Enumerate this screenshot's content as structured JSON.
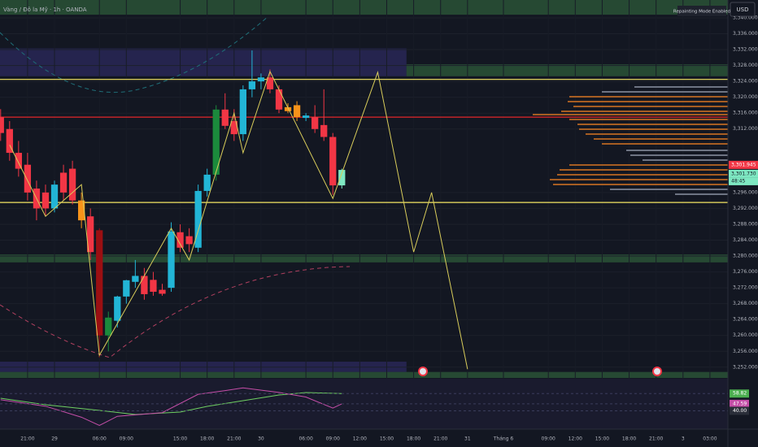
{
  "chart_data": {
    "type": "candlestick",
    "title": "Vàng / Đô la Mỹ · 1h · OANDA",
    "badge": "Repainting Mode Enabled",
    "currency": "USD",
    "countdown": "48:45",
    "background": "#131722",
    "grid": true,
    "xlim": [
      -6.07,
      75
    ],
    "ylim": [
      3249.3,
      3344.5
    ],
    "yticks": [
      {
        "value": 3252,
        "label": "3,252.000"
      },
      {
        "value": 3256,
        "label": "3,256.000"
      },
      {
        "value": 3260,
        "label": "3,260.000"
      },
      {
        "value": 3264,
        "label": "3,264.000"
      },
      {
        "value": 3268,
        "label": "3,268.000"
      },
      {
        "value": 3272,
        "label": "3,272.000"
      },
      {
        "value": 3276,
        "label": "3,276.000"
      },
      {
        "value": 3280,
        "label": "3,280.000"
      },
      {
        "value": 3284,
        "label": "3,284.000"
      },
      {
        "value": 3288,
        "label": "3,288.000"
      },
      {
        "value": 3292,
        "label": "3,292.000"
      },
      {
        "value": 3296,
        "label": "3,296.000"
      },
      {
        "value": 3312,
        "label": "3,312.000"
      },
      {
        "value": 3316,
        "label": "3,316.000"
      },
      {
        "value": 3320,
        "label": "3,320.000"
      },
      {
        "value": 3324,
        "label": "3,324.000"
      },
      {
        "value": 3328,
        "label": "3,328.000"
      },
      {
        "value": 3332,
        "label": "3,332.000"
      },
      {
        "value": 3336,
        "label": "3,336.000"
      },
      {
        "value": 3340,
        "label": "3,340.000"
      }
    ],
    "xticks": [
      {
        "value": -3,
        "label": "21:00"
      },
      {
        "value": 0,
        "label": "29"
      },
      {
        "value": 5,
        "label": "06:00"
      },
      {
        "value": 8,
        "label": "09:00"
      },
      {
        "value": 14,
        "label": "15:00"
      },
      {
        "value": 17,
        "label": "18:00"
      },
      {
        "value": 20,
        "label": "21:00"
      },
      {
        "value": 23,
        "label": "30"
      },
      {
        "value": 28,
        "label": "06:00"
      },
      {
        "value": 31,
        "label": "09:00"
      },
      {
        "value": 34,
        "label": "12:00"
      },
      {
        "value": 37,
        "label": "15:00"
      },
      {
        "value": 40,
        "label": "18:00"
      },
      {
        "value": 43,
        "label": "21:00"
      },
      {
        "value": 46,
        "label": "31"
      },
      {
        "value": 50,
        "label": "Tháng 6"
      },
      {
        "value": 55,
        "label": "09:00"
      },
      {
        "value": 58,
        "label": "12:00"
      },
      {
        "value": 61,
        "label": "15:00"
      },
      {
        "value": 64,
        "label": "18:00"
      },
      {
        "value": 67,
        "label": "21:00"
      },
      {
        "value": 70,
        "label": "3"
      },
      {
        "value": 73,
        "label": "03:00"
      }
    ],
    "candles": {
      "x": [
        -6,
        -5,
        -4,
        -3,
        -2,
        -1,
        0,
        1,
        2,
        3,
        4,
        5,
        6,
        7,
        8,
        9,
        10,
        11,
        12,
        13,
        14,
        15,
        16,
        17,
        18,
        19,
        20,
        21,
        22,
        23,
        24,
        25,
        26,
        27,
        28,
        29,
        30,
        31,
        32
      ],
      "open": [
        3315,
        3312,
        3306,
        3303,
        3297,
        3296,
        3292,
        3301,
        3302,
        3294,
        3290,
        3286.5,
        3260,
        3263.7,
        3269.8,
        3273.5,
        3275,
        3274,
        3271.5,
        3272,
        3286,
        3285,
        3282.1,
        3296.4,
        3300.5,
        3316.9,
        3314,
        3310.7,
        3322,
        3324,
        3325,
        3322,
        3317.5,
        3318,
        3314.8,
        3315,
        3313,
        3310,
        3297.8
      ],
      "high": [
        3317,
        3314,
        3309,
        3306,
        3299,
        3298,
        3299,
        3303,
        3304,
        3296,
        3292,
        3287,
        3266,
        3270,
        3274,
        3279,
        3277,
        3276,
        3273,
        3288.5,
        3288,
        3287,
        3298,
        3302,
        3318,
        3321,
        3317,
        3323,
        3331.8,
        3326,
        3327,
        3323,
        3318.5,
        3319,
        3316,
        3318,
        3322,
        3311,
        3302
      ],
      "low": [
        3309,
        3304,
        3300,
        3294,
        3289,
        3290,
        3291,
        3294,
        3293,
        3287,
        3279,
        3254.5,
        3256,
        3262,
        3268,
        3272,
        3269,
        3270,
        3270,
        3271,
        3281,
        3281,
        3281,
        3295,
        3299,
        3312,
        3309,
        3309,
        3320,
        3322,
        3321,
        3316,
        3316,
        3314,
        3314,
        3311,
        3309,
        3295.4,
        3297
      ],
      "close": [
        3311,
        3306,
        3302,
        3296,
        3292,
        3292,
        3298,
        3296,
        3294,
        3289,
        3281,
        3260,
        3264.5,
        3269.8,
        3273.9,
        3275,
        3270.4,
        3271,
        3270.5,
        3286.2,
        3282.1,
        3283,
        3296.4,
        3300.5,
        3316.9,
        3312.8,
        3310.7,
        3322,
        3324,
        3325,
        3322,
        3316.9,
        3316.5,
        3315,
        3315.4,
        3312,
        3310,
        3297.8,
        3301.7
      ],
      "colors": [
        "#f23645",
        "#f23645",
        "#f23645",
        "#f23645",
        "#f23645",
        "#f23645",
        "#22b5d6",
        "#f23645",
        "#f23645",
        "#f7931a",
        "#f23645",
        "#9b0f12",
        "#1b8a3c",
        "#22b5d6",
        "#22b5d6",
        "#22b5d6",
        "#f23645",
        "#f23645",
        "#f23645",
        "#22b5d6",
        "#f23645",
        "#f23645",
        "#22b5d6",
        "#22b5d6",
        "#1b8a3c",
        "#f23645",
        "#f23645",
        "#22b5d6",
        "#22b5d6",
        "#22b5d6",
        "#f23645",
        "#f23645",
        "#f7931a",
        "#f7931a",
        "#22b5d6",
        "#f23645",
        "#f23645",
        "#f23645",
        "#7ee8c2"
      ]
    },
    "levels": [
      {
        "value": 3324.5,
        "color": "#f5e663"
      },
      {
        "value": 3315,
        "color": "#e3262b"
      },
      {
        "value": 3293.5,
        "color": "#f5e663"
      }
    ],
    "bands": [
      {
        "x": [
          -6.07,
          75
        ],
        "from": 3340.8,
        "to": 3344.5,
        "color": "#2e5b3a"
      },
      {
        "x": [
          -6.07,
          39.2
        ],
        "from": 3325.3,
        "to": 3332.3,
        "color": "#2c2a5e"
      },
      {
        "x": [
          39.2,
          75
        ],
        "from": 3325.3,
        "to": 3328.3,
        "color": "#2e5b3a"
      },
      {
        "x": [
          -6.07,
          75
        ],
        "from": 3278.4,
        "to": 3280.4,
        "color": "#2e5b3a"
      },
      {
        "x": [
          -6.07,
          39.2
        ],
        "from": 3250.8,
        "to": 3253.4,
        "color": "#2c2a5e"
      },
      {
        "x": [
          -6.07,
          75
        ],
        "from": 3249.3,
        "to": 3250.8,
        "color": "#2e5b3a"
      }
    ],
    "zigzag": {
      "color": "#d8cc5a",
      "x": [
        -5,
        -1,
        3,
        5,
        13,
        15,
        20,
        21,
        24,
        31,
        36,
        40,
        42,
        46
      ],
      "values": [
        3308,
        3290,
        3298,
        3255,
        3287,
        3279,
        3316,
        3306,
        3326.5,
        3294.5,
        3326.3,
        3281,
        3296,
        3251.5
      ]
    },
    "price_tags": [
      {
        "value": 3301.945,
        "label": "3,301.945",
        "color": "#f23645"
      },
      {
        "value": 3301.73,
        "label": "3,301.730",
        "color": "#7ee8c2"
      }
    ],
    "indicator": {
      "ylim": [
        20,
        75
      ],
      "series": [
        {
          "color": "#6fcf62",
          "x": [
            -6,
            -1,
            5,
            9,
            14,
            17,
            21,
            25,
            28,
            32
          ],
          "values": [
            53.7,
            46.6,
            40.4,
            36,
            38.6,
            44.8,
            51,
            57.3,
            59.9,
            58.82
          ]
        },
        {
          "color": "#c54ea8",
          "x": [
            -6,
            -1,
            3,
            5,
            7,
            12,
            16,
            19,
            21,
            25,
            28,
            31,
            32
          ],
          "values": [
            52,
            45,
            33,
            24,
            34,
            38,
            58,
            62,
            65,
            60,
            55,
            43,
            47.59
          ]
        }
      ],
      "tags": [
        {
          "value": 58.82,
          "color": "#4caf50"
        },
        {
          "value": 47.59,
          "color": "#c54ea8"
        },
        {
          "value": 40,
          "label": "40.00",
          "color": "#2a2e39"
        }
      ]
    }
  }
}
